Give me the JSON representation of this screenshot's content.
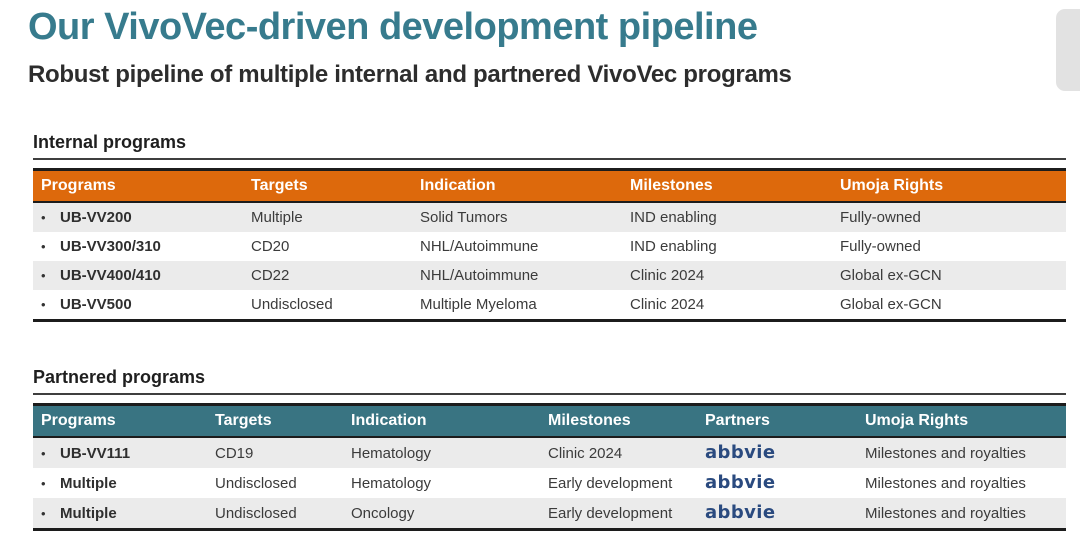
{
  "slide": {
    "title": "Our VivoVec-driven development pipeline",
    "subtitle": "Robust pipeline of multiple internal and partnered VivoVec programs"
  },
  "bullet": "•",
  "colors": {
    "title_teal": "#377B8D",
    "internal_header_orange": "#DD690C",
    "partnered_header_teal": "#397482",
    "row_alternate_gray": "#EBEBEB",
    "abbvie_navy": "#2A4A7F"
  },
  "internal": {
    "section_title": "Internal programs",
    "columns": [
      "Programs",
      "Targets",
      "Indication",
      "Milestones",
      "Umoja Rights"
    ],
    "rows": [
      {
        "program": "UB-VV200",
        "target": "Multiple",
        "indication": "Solid Tumors",
        "milestone": "IND enabling",
        "rights": "Fully-owned"
      },
      {
        "program": "UB-VV300/310",
        "target": "CD20",
        "indication": "NHL/Autoimmune",
        "milestone": "IND enabling",
        "rights": "Fully-owned"
      },
      {
        "program": "UB-VV400/410",
        "target": "CD22",
        "indication": "NHL/Autoimmune",
        "milestone": "Clinic 2024",
        "rights": "Global ex-GCN"
      },
      {
        "program": "UB-VV500",
        "target": "Undisclosed",
        "indication": "Multiple Myeloma",
        "milestone": "Clinic 2024",
        "rights": "Global ex-GCN"
      }
    ]
  },
  "partnered": {
    "section_title": "Partnered programs",
    "columns": [
      "Programs",
      "Targets",
      "Indication",
      "Milestones",
      "Partners",
      "Umoja Rights"
    ],
    "rows": [
      {
        "program": "UB-VV111",
        "target": "CD19",
        "indication": "Hematology",
        "milestone": "Clinic 2024",
        "partner": "abbvie",
        "rights": "Milestones and royalties"
      },
      {
        "program": "Multiple",
        "target": "Undisclosed",
        "indication": "Hematology",
        "milestone": "Early development",
        "partner": "abbvie",
        "rights": "Milestones and royalties"
      },
      {
        "program": "Multiple",
        "target": "Undisclosed",
        "indication": "Oncology",
        "milestone": "Early development",
        "partner": "abbvie",
        "rights": "Milestones and royalties"
      }
    ]
  }
}
